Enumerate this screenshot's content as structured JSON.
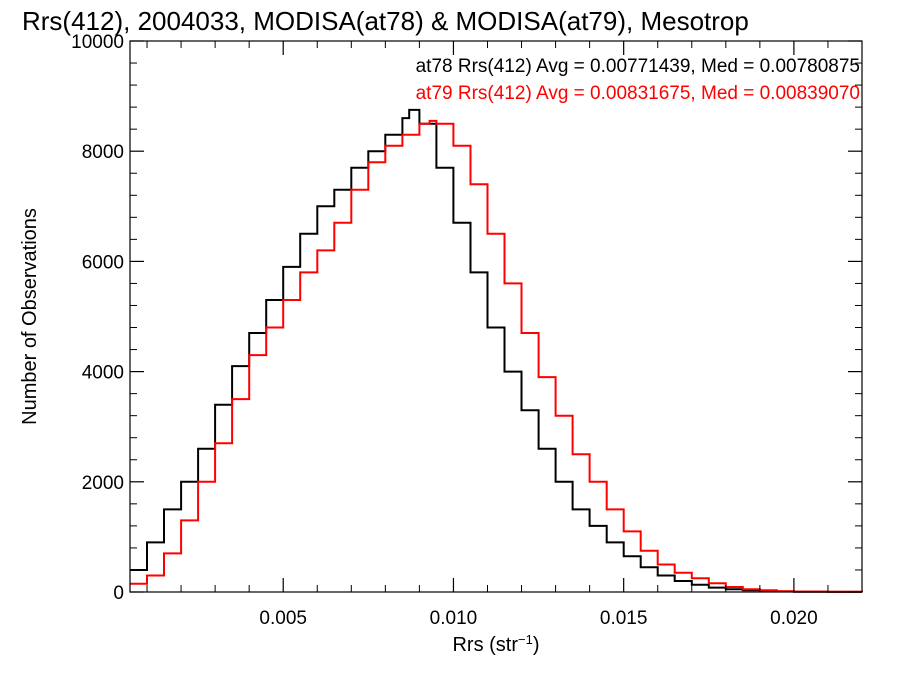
{
  "chart_data": {
    "type": "line",
    "title": "Rrs(412), 2004033, MODISA(at78) & MODISA(at79), Mesotrop",
    "xlabel": "Rrs (str",
    "xlabel_sup": "−1",
    "xlabel_close": ")",
    "ylabel": "Number of Observations",
    "xlim": [
      0.0005,
      0.022
    ],
    "ylim": [
      0,
      10000
    ],
    "xticks": [
      0.005,
      0.01,
      0.015,
      0.02
    ],
    "xtick_labels": [
      "0.005",
      "0.010",
      "0.015",
      "0.020"
    ],
    "yticks": [
      0,
      2000,
      4000,
      6000,
      8000,
      10000
    ],
    "ytick_labels": [
      "0",
      "2000",
      "4000",
      "6000",
      "8000",
      "10000"
    ],
    "grid": false,
    "legend": "top-right",
    "annotations": [
      {
        "text": "at78 Rrs(412) Avg = 0.00771439, Med = 0.00780875",
        "color": "#000000"
      },
      {
        "text": "at79 Rrs(412) Avg = 0.00831675, Med = 0.00839070",
        "color": "#ff0000"
      }
    ],
    "series": [
      {
        "color": "#000000",
        "x": [
          0.0005,
          0.001,
          0.0015,
          0.002,
          0.0025,
          0.003,
          0.0035,
          0.004,
          0.0045,
          0.005,
          0.0055,
          0.006,
          0.0065,
          0.007,
          0.0075,
          0.008,
          0.0085,
          0.0087,
          0.009,
          0.0095,
          0.01,
          0.0105,
          0.011,
          0.0115,
          0.012,
          0.0125,
          0.013,
          0.0135,
          0.014,
          0.0145,
          0.015,
          0.0155,
          0.016,
          0.0165,
          0.017,
          0.0175,
          0.018,
          0.0185,
          0.019,
          0.0195,
          0.02,
          0.021,
          0.022
        ],
        "values": [
          400,
          900,
          1500,
          2000,
          2600,
          3400,
          4100,
          4700,
          5300,
          5900,
          6500,
          7000,
          7300,
          7700,
          8000,
          8300,
          8600,
          8750,
          8500,
          7700,
          6700,
          5800,
          4800,
          4000,
          3300,
          2600,
          2000,
          1500,
          1200,
          900,
          650,
          450,
          300,
          200,
          130,
          80,
          50,
          30,
          20,
          10,
          5,
          2,
          0
        ]
      },
      {
        "color": "#ff0000",
        "x": [
          0.0005,
          0.001,
          0.0015,
          0.002,
          0.0025,
          0.003,
          0.0035,
          0.004,
          0.0045,
          0.005,
          0.0055,
          0.006,
          0.0065,
          0.007,
          0.0075,
          0.008,
          0.0085,
          0.009,
          0.0093,
          0.0095,
          0.01,
          0.0105,
          0.011,
          0.0115,
          0.012,
          0.0125,
          0.013,
          0.0135,
          0.014,
          0.0145,
          0.015,
          0.0155,
          0.016,
          0.0165,
          0.017,
          0.0175,
          0.018,
          0.0185,
          0.019,
          0.0195,
          0.02,
          0.021,
          0.022
        ],
        "values": [
          150,
          300,
          700,
          1300,
          2000,
          2700,
          3500,
          4300,
          4800,
          5300,
          5800,
          6200,
          6700,
          7300,
          7800,
          8100,
          8300,
          8500,
          8550,
          8500,
          8100,
          7400,
          6500,
          5600,
          4700,
          3900,
          3200,
          2500,
          2000,
          1500,
          1100,
          750,
          500,
          350,
          250,
          160,
          90,
          50,
          30,
          15,
          8,
          3,
          0
        ]
      }
    ]
  }
}
